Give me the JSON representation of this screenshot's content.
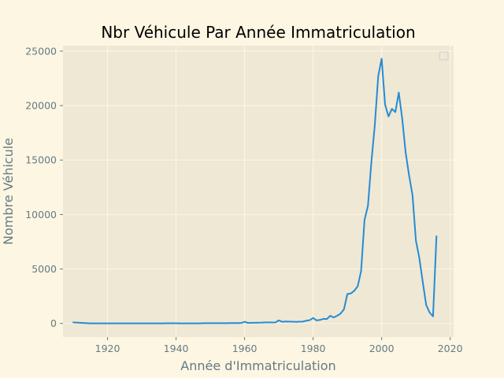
{
  "chart_data": {
    "type": "line",
    "title": "Nbr Véhicule Par Année Immatriculation",
    "xlabel": "Année d'Immatriculation",
    "ylabel": "Nombre Véhicule",
    "xlim": [
      1907,
      2021
    ],
    "ylim": [
      -1250,
      25500
    ],
    "xticks": [
      1920,
      1940,
      1960,
      1980,
      2000,
      2020
    ],
    "yticks": [
      0,
      5000,
      10000,
      15000,
      20000,
      25000
    ],
    "grid": true,
    "legend": "top-right (empty)",
    "colors": {
      "background": "#fdf6e3",
      "plot_area": "#eee8d5",
      "grid": "#fdf6e3",
      "text": "#657b83",
      "line": "#268bd2"
    },
    "series": [
      {
        "x": [
          1910,
          1911,
          1912,
          1913,
          1914,
          1915,
          1916,
          1917,
          1918,
          1919,
          1920,
          1921,
          1922,
          1923,
          1924,
          1925,
          1926,
          1927,
          1928,
          1929,
          1930,
          1931,
          1932,
          1933,
          1934,
          1935,
          1936,
          1937,
          1938,
          1939,
          1940,
          1941,
          1942,
          1943,
          1944,
          1945,
          1946,
          1947,
          1948,
          1949,
          1950,
          1951,
          1952,
          1953,
          1954,
          1955,
          1956,
          1957,
          1958,
          1959,
          1960,
          1961,
          1962,
          1963,
          1964,
          1965,
          1966,
          1967,
          1968,
          1969,
          1970,
          1971,
          1972,
          1973,
          1974,
          1975,
          1976,
          1977,
          1978,
          1979,
          1980,
          1981,
          1982,
          1983,
          1984,
          1985,
          1986,
          1987,
          1988,
          1989,
          1990,
          1991,
          1992,
          1993,
          1994,
          1995,
          1996,
          1997,
          1998,
          1999,
          2000,
          2001,
          2002,
          2003,
          2004,
          2005,
          2006,
          2007,
          2008,
          2009,
          2010,
          2011,
          2012,
          2013,
          2014,
          2015,
          2016
        ],
        "values": [
          100,
          80,
          60,
          40,
          20,
          10,
          10,
          10,
          10,
          10,
          10,
          10,
          10,
          10,
          10,
          10,
          10,
          10,
          10,
          10,
          10,
          10,
          10,
          10,
          10,
          10,
          10,
          15,
          15,
          15,
          15,
          10,
          10,
          10,
          10,
          10,
          10,
          10,
          20,
          20,
          20,
          20,
          20,
          20,
          20,
          20,
          30,
          30,
          30,
          40,
          150,
          50,
          60,
          60,
          70,
          80,
          100,
          100,
          90,
          100,
          280,
          150,
          180,
          170,
          160,
          140,
          160,
          170,
          250,
          300,
          500,
          280,
          320,
          420,
          400,
          700,
          550,
          700,
          900,
          1300,
          2700,
          2750,
          3000,
          3400,
          4800,
          9500,
          10800,
          14800,
          18200,
          22700,
          24300,
          20100,
          19000,
          19700,
          19400,
          21200,
          18800,
          15700,
          13600,
          11800,
          7600,
          6000,
          3800,
          1700,
          1000,
          650,
          8000
        ]
      }
    ]
  }
}
